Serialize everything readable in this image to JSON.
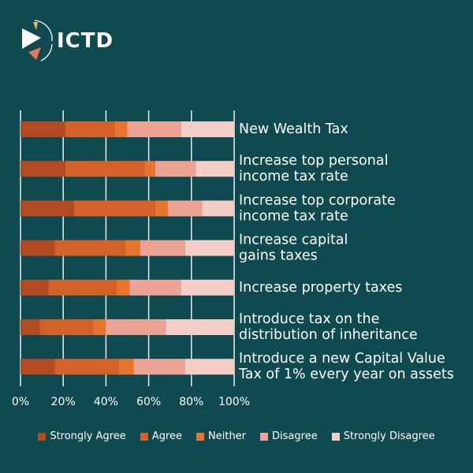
{
  "logo": {
    "text": "ICTD"
  },
  "colors": {
    "background": "#0e4a4f",
    "Strongly Agree": "#b24a22",
    "Agree": "#d4612a",
    "Neither": "#e9742e",
    "Disagree": "#eda393",
    "Strongly Disagree": "#f3cec6"
  },
  "chart_data": {
    "type": "bar",
    "orientation": "horizontal",
    "stacked": true,
    "categories": [
      [
        "New Wealth Tax"
      ],
      [
        "Increase top personal",
        "income tax rate"
      ],
      [
        "Increase top corporate",
        "income tax rate"
      ],
      [
        "Increase capital",
        "gains taxes"
      ],
      [
        "Increase property taxes"
      ],
      [
        "Introduce tax on the",
        "distribution of inheritance"
      ],
      [
        "Introduce a new Capital Value",
        "Tax of 1% every year on assets"
      ]
    ],
    "series": [
      {
        "name": "Strongly Agree",
        "values": [
          21,
          21,
          25,
          16,
          13,
          9,
          16
        ]
      },
      {
        "name": "Agree",
        "values": [
          23,
          37,
          38,
          33,
          32,
          25,
          30
        ]
      },
      {
        "name": "Neither",
        "values": [
          6,
          5,
          6,
          7,
          6,
          6,
          7
        ]
      },
      {
        "name": "Disagree",
        "values": [
          25,
          19,
          16,
          21,
          24,
          28,
          24
        ]
      },
      {
        "name": "Strongly Disagree",
        "values": [
          25,
          18,
          15,
          23,
          25,
          32,
          23
        ]
      }
    ],
    "xlim": [
      0,
      100
    ],
    "xticks": [
      "0%",
      "20%",
      "40%",
      "60%",
      "80%",
      "100%"
    ],
    "legend_position": "bottom"
  }
}
